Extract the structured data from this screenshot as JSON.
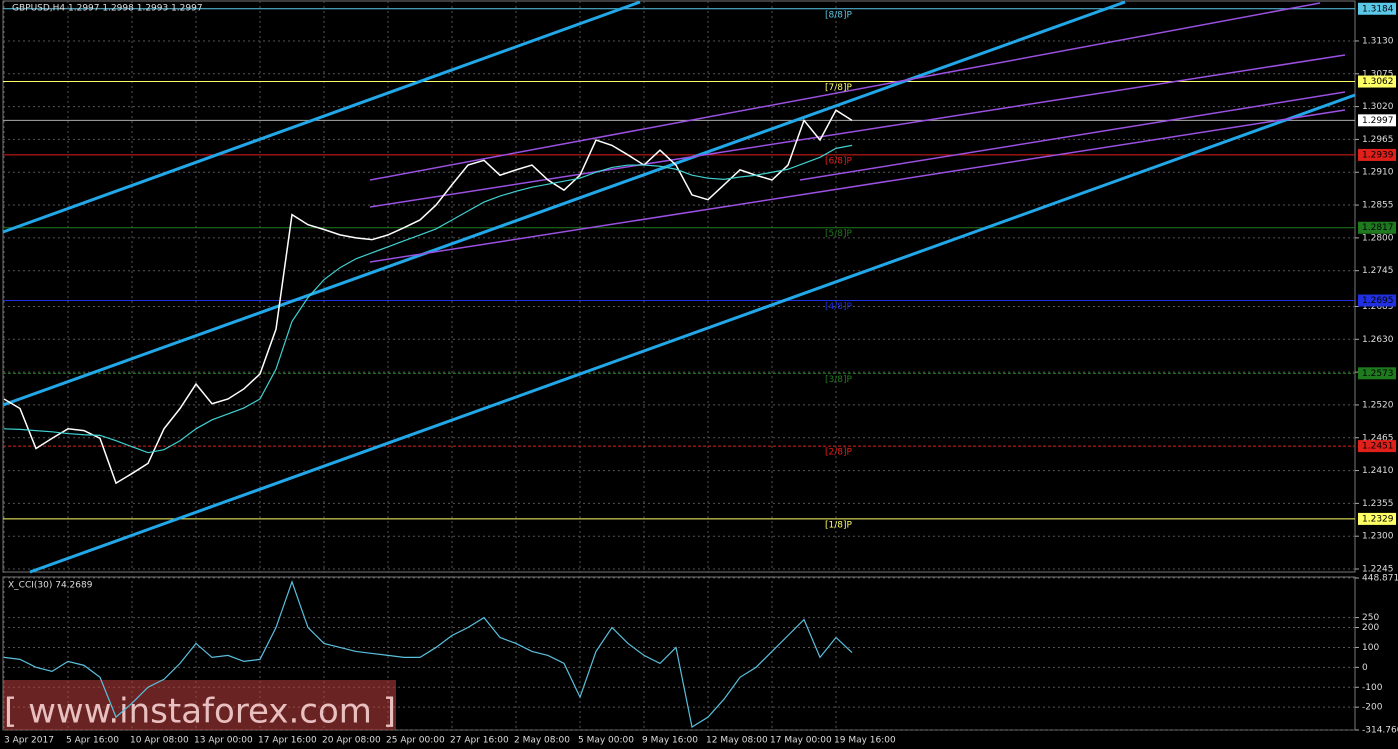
{
  "chart_data": [
    {
      "type": "line",
      "title": "GBPUSD,H4  1.2997 1.2998 1.2993 1.2997",
      "categories": [
        "3 Apr 2017",
        null,
        null,
        null,
        "5 Apr 16:00",
        null,
        null,
        null,
        "10 Apr 08:00",
        null,
        null,
        null,
        "13 Apr 00:00",
        null,
        null,
        null,
        "17 Apr 16:00",
        null,
        null,
        null,
        "20 Apr 08:00",
        null,
        null,
        null,
        "25 Apr 00:00",
        null,
        null,
        null,
        "27 Apr 16:00",
        null,
        null,
        null,
        "2 May 08:00",
        null,
        null,
        null,
        "5 May 00:00",
        null,
        null,
        null,
        "9 May 16:00",
        null,
        null,
        null,
        "12 May 08:00",
        null,
        null,
        null,
        "17 May 00:00",
        null,
        null,
        null,
        "19 May 16:00",
        null
      ],
      "series": [
        {
          "color": "#ffffff",
          "values": [
            1.253,
            1.2514,
            1.2447,
            1.2464,
            1.248,
            1.2477,
            1.2464,
            1.2389,
            1.2405,
            1.2422,
            1.248,
            1.2514,
            1.2555,
            1.2522,
            1.253,
            1.2547,
            1.2572,
            1.2647,
            1.2839,
            1.2822,
            1.2814,
            1.2805,
            1.28,
            1.2797,
            1.2805,
            1.2817,
            1.283,
            1.2855,
            1.2889,
            1.2922,
            1.293,
            1.2905,
            1.2914,
            1.2922,
            1.2897,
            1.288,
            1.2905,
            1.2964,
            1.2955,
            1.2939,
            1.2922,
            1.2947,
            1.2922,
            1.2872,
            1.2864,
            1.2889,
            1.2914,
            1.2905,
            1.2897,
            1.2922,
            1.2997,
            1.2964,
            1.3014,
            1.2997
          ]
        },
        {
          "color": "#40d0d0",
          "values": [
            1.248,
            1.2479,
            1.2477,
            1.2475,
            1.2472,
            1.247,
            1.2469,
            1.246,
            1.245,
            1.244,
            1.2445,
            1.246,
            1.248,
            1.2495,
            1.2505,
            1.2515,
            1.253,
            1.258,
            1.266,
            1.27,
            1.273,
            1.275,
            1.2765,
            1.2775,
            1.2785,
            1.2795,
            1.2805,
            1.2815,
            1.283,
            1.2845,
            1.286,
            1.287,
            1.2878,
            1.2885,
            1.289,
            1.2895,
            1.29,
            1.291,
            1.2918,
            1.2922,
            1.2922,
            1.292,
            1.2915,
            1.2905,
            1.29,
            1.2898,
            1.2902,
            1.2905,
            1.291,
            1.2915,
            1.2925,
            1.2935,
            1.295,
            1.2955
          ]
        }
      ],
      "ylim": [
        1.224,
        1.3197
      ],
      "yticks": [
        {
          "value": 1.313,
          "label": "1.3130"
        },
        1.3075,
        {
          "value": 1.302,
          "label": "1.3020"
        },
        1.2965,
        {
          "value": 1.291,
          "label": "1.2910"
        },
        1.2855,
        {
          "value": 1.28,
          "label": "1.2800"
        },
        1.2745,
        1.2685,
        {
          "value": 1.263,
          "label": "1.2630"
        },
        1.2575,
        {
          "value": 1.252,
          "label": "1.2520"
        },
        1.2465,
        {
          "value": 1.241,
          "label": "1.2410"
        },
        1.2355,
        {
          "value": 1.23,
          "label": "1.2300"
        },
        1.2245
      ],
      "levels": [
        {
          "label": "[8/8]P",
          "value": 1.3184,
          "color": "#5bc8e8"
        },
        {
          "label": "[7/8]P",
          "value": 1.3062,
          "color": "#ffff66"
        },
        {
          "label": "[6/8]P",
          "value": 1.2939,
          "color": "#e0201a"
        },
        {
          "label": "[5/8]P",
          "value": 1.2817,
          "color": "#1f7a1f"
        },
        {
          "label": "[4/8]P",
          "value": 1.2695,
          "color": "#2030e0"
        },
        {
          "label": "[3/8]P",
          "value": 1.2573,
          "color": "#1f7a1f"
        },
        {
          "label": "[2/8]P",
          "value": 1.2451,
          "color": "#e0201a"
        },
        {
          "label": "[1/8]P",
          "value": 1.2329,
          "color": "#ffff66"
        }
      ],
      "current_price": 1.2997,
      "grid": true
    },
    {
      "type": "line",
      "title": "X_CCI(30) 74.2689",
      "series": [
        {
          "color": "#5bc0de",
          "values": [
            50,
            40,
            0,
            -20,
            30,
            10,
            -50,
            -250,
            -180,
            -100,
            -60,
            20,
            120,
            50,
            60,
            30,
            40,
            200,
            430,
            200,
            120,
            100,
            80,
            70,
            60,
            50,
            50,
            100,
            160,
            200,
            250,
            150,
            120,
            80,
            60,
            20,
            -150,
            80,
            200,
            120,
            60,
            20,
            100,
            -300,
            -250,
            -160,
            -50,
            0,
            80,
            160,
            240,
            50,
            150,
            74.2689
          ]
        }
      ],
      "ylim": [
        -314.7609,
        448.8716
      ],
      "yticks": [
        448.8716,
        250,
        200,
        100,
        0,
        -100,
        -200,
        -314.7609
      ],
      "grid": true
    }
  ],
  "watermark": "[ www.instaforex.com ]"
}
